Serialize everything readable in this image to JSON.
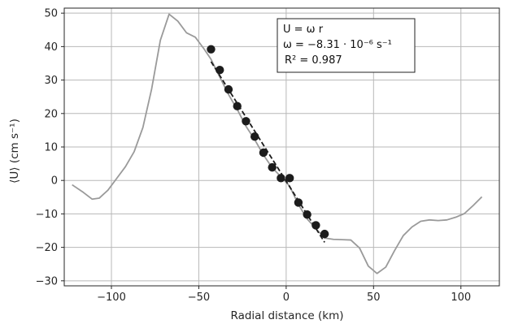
{
  "chart_data": {
    "type": "line",
    "xlabel": "Radial distance (km)",
    "ylabel": "⟨U⟩ (cm s⁻¹)",
    "xlim": [
      -127,
      122
    ],
    "ylim": [
      -31.5,
      51.5
    ],
    "xticks": [
      -100,
      -50,
      0,
      50,
      100
    ],
    "yticks": [
      -30,
      -20,
      -10,
      0,
      10,
      20,
      30,
      40,
      50
    ],
    "xtick_labels": [
      "−100",
      "−50",
      "0",
      "50",
      "100"
    ],
    "ytick_labels": [
      "−30",
      "−20",
      "−10",
      "0",
      "10",
      "20",
      "30",
      "40",
      "50"
    ],
    "grid": true,
    "colors": {
      "profile": "#9a9a9a",
      "points": "#1c1c1c",
      "fit": "#1c1c1c",
      "grid": "#b8b8b8"
    },
    "series": [
      {
        "type": "line",
        "style": "solid-gray",
        "x": [
          -122.5,
          -116,
          -111,
          -107,
          -102,
          -97,
          -92,
          -87,
          -82,
          -77,
          -72,
          -67,
          -62,
          -57,
          -52,
          -47,
          -43,
          -38,
          -33,
          -28,
          -23,
          -18,
          -13,
          -8,
          -3,
          2,
          7,
          12,
          17,
          22,
          27,
          32,
          37,
          42,
          47,
          52,
          57,
          62,
          67,
          72,
          77,
          82,
          87,
          92,
          97,
          102,
          107,
          112
        ],
        "y": [
          -1.3,
          -3.6,
          -5.6,
          -5.3,
          -2.9,
          0.6,
          4.1,
          8.6,
          15.8,
          27.3,
          41.9,
          49.7,
          47.6,
          44.1,
          42.8,
          39.3,
          36.2,
          30.9,
          25.7,
          21.2,
          16.2,
          12.2,
          7.6,
          3.8,
          1.1,
          -1.7,
          -7.2,
          -11.5,
          -14.4,
          -17.2,
          -17.6,
          -17.7,
          -17.8,
          -20.2,
          -25.6,
          -27.8,
          -25.9,
          -21.0,
          -16.5,
          -13.9,
          -12.2,
          -11.8,
          -12.0,
          -11.8,
          -11.0,
          -9.9,
          -7.5,
          -4.9
        ]
      },
      {
        "type": "scatter",
        "style": "black-dots",
        "x": [
          -43,
          -38,
          -33,
          -28,
          -23,
          -18,
          -13,
          -8,
          -3,
          2,
          7,
          12,
          17,
          22
        ],
        "y": [
          39.2,
          33.0,
          27.2,
          22.2,
          17.7,
          13.1,
          8.3,
          3.9,
          0.7,
          0.7,
          -6.6,
          -10.2,
          -13.4,
          -16.0
        ]
      },
      {
        "type": "line",
        "style": "dashed-black",
        "x": [
          -43,
          22
        ],
        "y": [
          35.5,
          -18.5
        ]
      }
    ],
    "annotation": {
      "line1": "U = ω r",
      "line2": "ω = −8.31 · 10⁻⁶ s⁻¹",
      "line3": "R² = 0.987"
    }
  }
}
